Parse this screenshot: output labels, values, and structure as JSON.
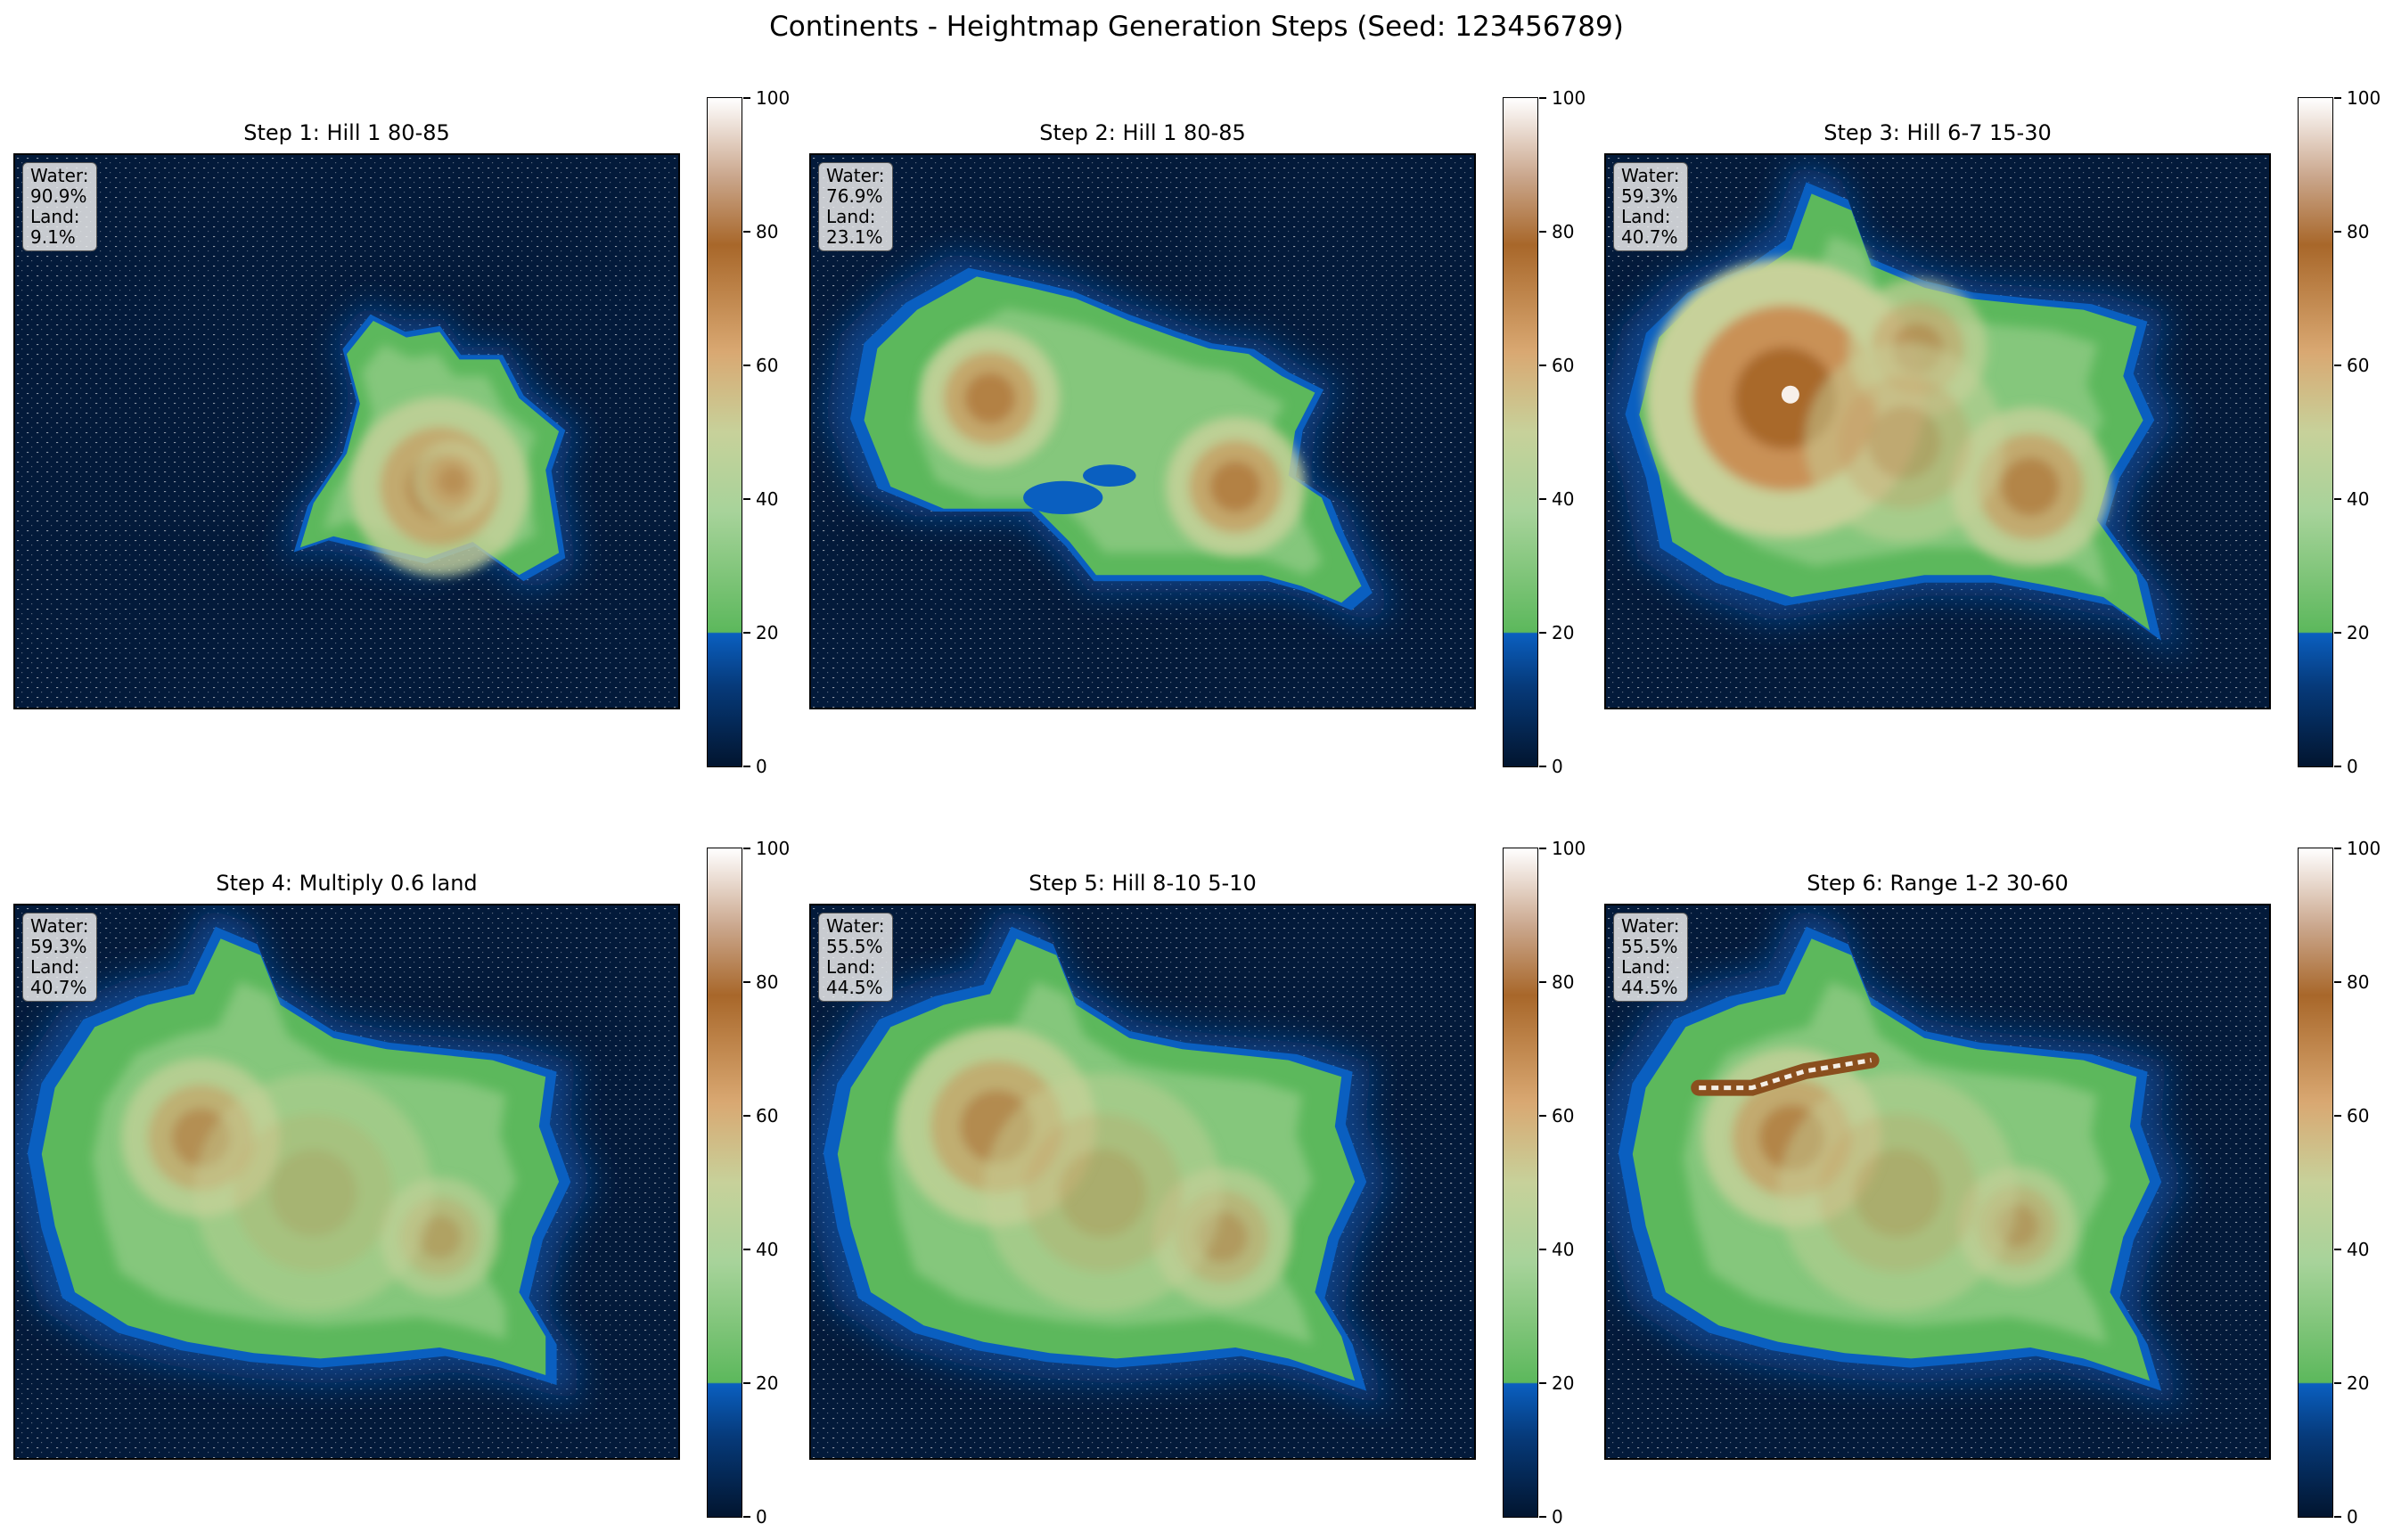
{
  "figure": {
    "title": "Continents - Heightmap Generation Steps (Seed: 123456789)"
  },
  "colorbar": {
    "ticks": [
      "0",
      "20",
      "40",
      "60",
      "80",
      "100"
    ],
    "range": [
      0,
      100
    ],
    "water_threshold": 20,
    "colors": {
      "deep_water": "#031a3a",
      "shallow_water": "#0a5fc0",
      "low_land": "#5cb85c",
      "mid_land": "#c7d19a",
      "high_land": "#a8672a",
      "peak": "#ffffff"
    }
  },
  "chart_data": [
    {
      "type": "heatmap",
      "title": "Step 1: Hill 1 80-85",
      "stats": {
        "water_label": "Water: 90.9%",
        "land_label": "Land: 9.1%"
      },
      "water_pct": 90.9,
      "land_pct": 9.1,
      "clim": [
        0,
        100
      ],
      "colorbar_ticks": [
        0,
        20,
        40,
        60,
        80,
        100
      ]
    },
    {
      "type": "heatmap",
      "title": "Step 2: Hill 1 80-85",
      "stats": {
        "water_label": "Water: 76.9%",
        "land_label": "Land: 23.1%"
      },
      "water_pct": 76.9,
      "land_pct": 23.1,
      "clim": [
        0,
        100
      ],
      "colorbar_ticks": [
        0,
        20,
        40,
        60,
        80,
        100
      ]
    },
    {
      "type": "heatmap",
      "title": "Step 3: Hill 6-7 15-30",
      "stats": {
        "water_label": "Water: 59.3%",
        "land_label": "Land: 40.7%"
      },
      "water_pct": 59.3,
      "land_pct": 40.7,
      "clim": [
        0,
        100
      ],
      "colorbar_ticks": [
        0,
        20,
        40,
        60,
        80,
        100
      ]
    },
    {
      "type": "heatmap",
      "title": "Step 4: Multiply 0.6 land",
      "stats": {
        "water_label": "Water: 59.3%",
        "land_label": "Land: 40.7%"
      },
      "water_pct": 59.3,
      "land_pct": 40.7,
      "clim": [
        0,
        100
      ],
      "colorbar_ticks": [
        0,
        20,
        40,
        60,
        80,
        100
      ]
    },
    {
      "type": "heatmap",
      "title": "Step 5: Hill 8-10 5-10",
      "stats": {
        "water_label": "Water: 55.5%",
        "land_label": "Land: 44.5%"
      },
      "water_pct": 55.5,
      "land_pct": 44.5,
      "clim": [
        0,
        100
      ],
      "colorbar_ticks": [
        0,
        20,
        40,
        60,
        80,
        100
      ]
    },
    {
      "type": "heatmap",
      "title": "Step 6: Range 1-2 30-60",
      "stats": {
        "water_label": "Water: 55.5%",
        "land_label": "Land: 44.5%"
      },
      "water_pct": 55.5,
      "land_pct": 44.5,
      "clim": [
        0,
        100
      ],
      "colorbar_ticks": [
        0,
        20,
        40,
        60,
        80,
        100
      ]
    }
  ]
}
